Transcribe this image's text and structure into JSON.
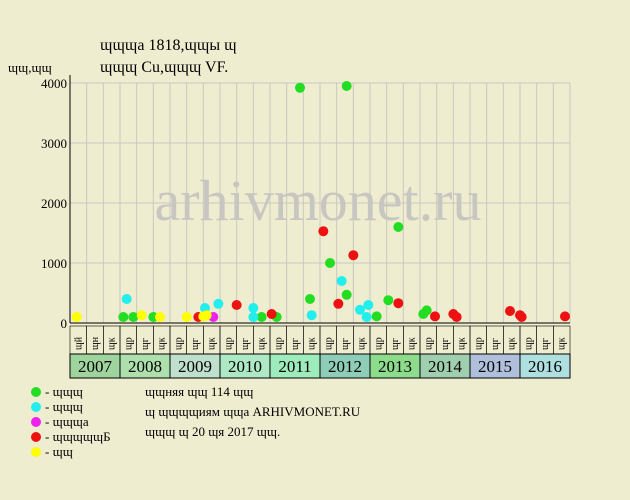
{
  "chart_data": {
    "type": "scatter",
    "title": "ɰɰɰа 1818,ɰɰы ɰ",
    "subtitle": "ɰɰɰ Cu,ɰɰɰ VF.",
    "y_label": "ɰɰ,ɰɰ",
    "watermark": "arhivmonet.ru",
    "xlim": [
      0,
      30
    ],
    "ylim": [
      0,
      4000
    ],
    "yticks": [
      0,
      1000,
      2000,
      3000,
      4000
    ],
    "grid": true,
    "years": [
      "2007",
      "2008",
      "2009",
      "2010",
      "2011",
      "2012",
      "2013",
      "2014",
      "2015",
      "2016"
    ],
    "year_colors": [
      "#9fd49f",
      "#aee0ae",
      "#bfe0cc",
      "#aee9c6",
      "#9eebbb",
      "#8ecdb8",
      "#8cdc8c",
      "#9fcfae",
      "#b0c0dc",
      "#aee0e0"
    ],
    "sub_labels": [
      "ɰй",
      "ɰн",
      "ɰк",
      "ɰр",
      "ɰг",
      "ɰк",
      "ɰр",
      "ɰг",
      "ɰк",
      "ɰр",
      "ɰг",
      "ɰк",
      "ɰр",
      "ɰг",
      "ɰк",
      "ɰр",
      "ɰг",
      "ɰк",
      "ɰр",
      "ɰг",
      "ɰк",
      "ɰр",
      "ɰг",
      "ɰк",
      "ɰр",
      "ɰг",
      "ɰк",
      "ɰр",
      "ɰг",
      "ɰк"
    ],
    "series": [
      {
        "name": "- ɰɰɰ",
        "color": "#22dd22",
        "x": [
          3.2,
          3.8,
          5.0,
          11.5,
          12.4,
          13.8,
          14.4,
          15.6,
          16.6,
          16.6,
          18.4,
          19.1,
          19.7,
          21.2,
          21.4
        ],
        "values": [
          100,
          100,
          100,
          100,
          100,
          3920,
          400,
          1000,
          470,
          3950,
          110,
          380,
          1600,
          150,
          210
        ]
      },
      {
        "name": "- ɰɰɰ",
        "color": "#22eeee",
        "x": [
          3.4,
          8.1,
          8.9,
          11.0,
          11.0,
          14.5,
          16.3,
          17.4,
          17.8,
          17.9
        ],
        "values": [
          400,
          250,
          320,
          250,
          100,
          130,
          700,
          220,
          100,
          300
        ]
      },
      {
        "name": "- ɰɰɰа",
        "color": "#ee22ee",
        "x": [
          8.6
        ],
        "values": [
          100
        ]
      },
      {
        "name": "- ɰɰɰɰɰБ",
        "color": "#ee1111",
        "x": [
          7.7,
          10.0,
          12.1,
          15.2,
          16.1,
          17.0,
          19.7,
          21.9,
          23.0,
          23.2,
          26.4,
          27.0,
          27.1,
          29.7
        ],
        "values": [
          100,
          300,
          150,
          1530,
          320,
          1130,
          330,
          110,
          150,
          100,
          200,
          130,
          100,
          110
        ]
      },
      {
        "name": "- ɰɰ",
        "color": "#ffff00",
        "x": [
          0.4,
          4.3,
          5.4,
          7.0,
          8.0,
          8.2
        ],
        "values": [
          100,
          130,
          100,
          100,
          110,
          130
        ]
      }
    ],
    "footer": [
      "ɰɰняя ɰɰ 114 ɰɰ",
      "ɰ ɰɰɰɰиям ɰɰа ARHIVMONET.RU",
      "ɰɰɰ ɰ 20 ɰя 2017 ɰɰ."
    ]
  }
}
